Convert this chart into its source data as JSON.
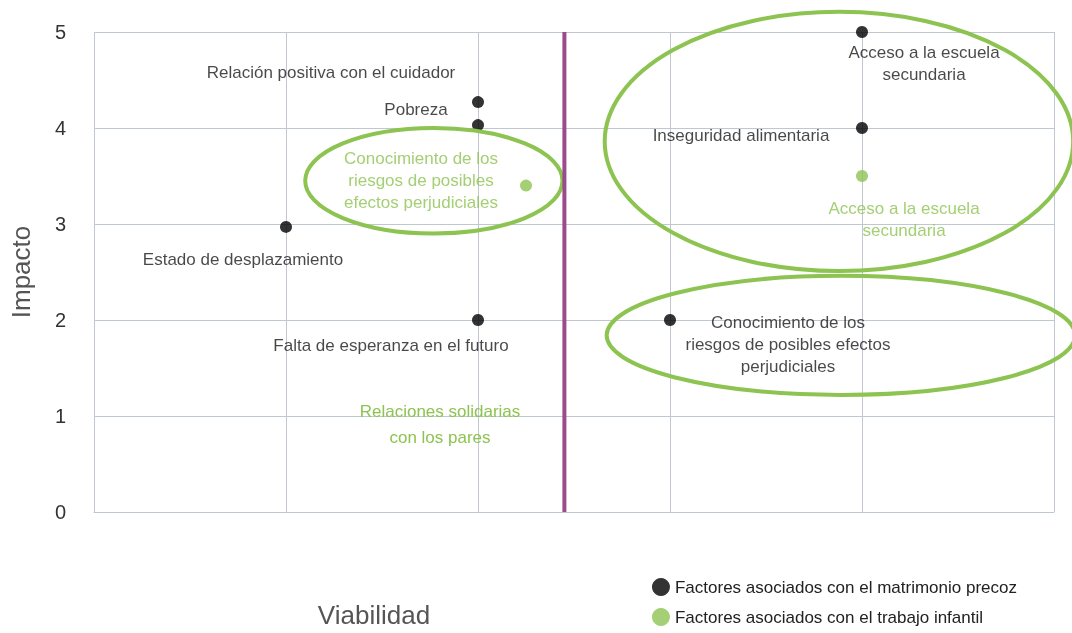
{
  "chart_data": {
    "type": "scatter",
    "xlabel": "Viabilidad",
    "ylabel": "Impacto",
    "categories": [
      null,
      null,
      null,
      null,
      null,
      null,
      null,
      null,
      null,
      null,
      null,
      null,
      null,
      null,
      null,
      null,
      null,
      null,
      null,
      null,
      null
    ],
    "ylim": [
      0,
      5
    ],
    "yticks": [
      0,
      1,
      2,
      3,
      4,
      5
    ],
    "series": [
      {
        "name": "Factores asociados con el matrimonio precoz",
        "color": "#000000",
        "values": [
          null,
          null,
          null,
          null,
          2.97,
          null,
          null,
          null,
          4.27,
          null,
          null,
          null,
          2,
          null,
          null,
          null,
          5,
          null,
          null,
          null,
          null
        ],
        "value_labels": [
          null,
          null,
          null,
          null,
          "Estado de desplazamiento",
          null,
          null,
          null,
          "Relación positiva con el cuidador",
          null,
          null,
          null,
          "Conocimiento de los\nriesgos de posibles efectos\nperjudiciales",
          null,
          null,
          null,
          "Acceso a la escuela\nsecundaria",
          null,
          null,
          null,
          null
        ]
      },
      {
        "color": "#000000",
        "values": [
          null,
          null,
          null,
          null,
          null,
          null,
          null,
          null,
          4.03,
          null,
          null,
          null,
          null,
          null,
          null,
          null,
          4,
          null,
          null,
          null,
          null
        ],
        "value_labels": [
          null,
          null,
          null,
          null,
          null,
          null,
          null,
          null,
          "Pobreza",
          null,
          null,
          null,
          null,
          null,
          null,
          null,
          "Inseguridad alimentaria",
          null,
          null,
          null,
          null
        ]
      },
      {
        "color": "#000000",
        "values": [
          null,
          null,
          null,
          null,
          null,
          null,
          null,
          null,
          2,
          null,
          null,
          null,
          null,
          null,
          null,
          null,
          null,
          null,
          null,
          null,
          null
        ],
        "value_labels": [
          null,
          null,
          null,
          null,
          null,
          null,
          null,
          null,
          "Falta de esperanza en el futuro",
          null,
          null,
          null,
          null,
          null,
          null,
          null,
          null,
          null,
          null,
          null,
          null
        ]
      },
      {
        "name": "Factores asociados con el trabajo infantil",
        "color": "#8dc351",
        "values": [
          null,
          null,
          null,
          null,
          null,
          null,
          null,
          null,
          null,
          3.4,
          null,
          null,
          null,
          null,
          null,
          null,
          3.5,
          null,
          null,
          null,
          null
        ],
        "value_labels": [
          null,
          null,
          null,
          null,
          null,
          null,
          null,
          null,
          null,
          "Conocimiento de los\nriesgos de posibles\nefectos perjudiciales",
          null,
          null,
          null,
          null,
          null,
          null,
          "Acceso a la escuela\nsecundaria",
          null,
          null,
          null,
          null
        ]
      }
    ],
    "annotations": [
      "Relaciones solidarias\ncon los pares"
    ],
    "grid": true,
    "legend": "bottom right",
    "tick_labels": "y",
    "marker": "circle"
  }
}
